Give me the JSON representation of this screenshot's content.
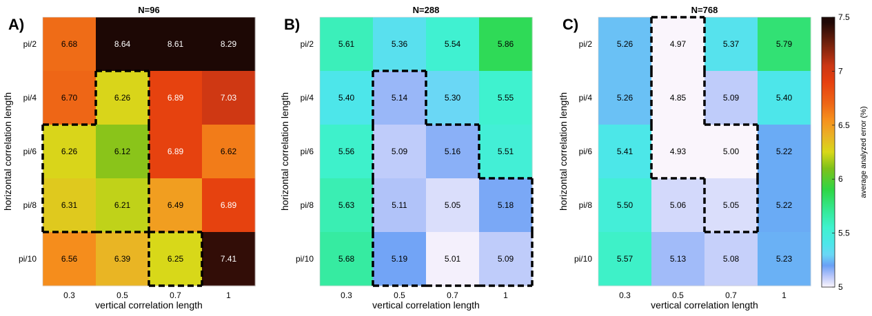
{
  "colorbar": {
    "label": "average analyzed error (%)",
    "min": 5,
    "max": 7.5,
    "ticks": [
      "5",
      "5.5",
      "6",
      "6.5",
      "7",
      "7.5"
    ],
    "colormap": "lavender-blue-cyan-green-yellow-orange-red-dark",
    "stops": [
      {
        "v": 5.0,
        "c": "#faf5fc"
      },
      {
        "v": 5.1,
        "c": "#b9c7fa"
      },
      {
        "v": 5.2,
        "c": "#6aa0f5"
      },
      {
        "v": 5.3,
        "c": "#6ad7f5"
      },
      {
        "v": 5.4,
        "c": "#4de6ea"
      },
      {
        "v": 5.55,
        "c": "#3ff2cf"
      },
      {
        "v": 5.7,
        "c": "#35ea9a"
      },
      {
        "v": 5.9,
        "c": "#2ed646"
      },
      {
        "v": 6.1,
        "c": "#7ec11a"
      },
      {
        "v": 6.25,
        "c": "#d8d819"
      },
      {
        "v": 6.4,
        "c": "#eab225"
      },
      {
        "v": 6.55,
        "c": "#f6901c"
      },
      {
        "v": 6.7,
        "c": "#ee6616"
      },
      {
        "v": 6.9,
        "c": "#e6400f"
      },
      {
        "v": 7.05,
        "c": "#cc3714"
      },
      {
        "v": 7.25,
        "c": "#75220c"
      },
      {
        "v": 7.45,
        "c": "#210806"
      },
      {
        "v": 7.5,
        "c": "#1d0805"
      }
    ]
  },
  "chart_data": [
    {
      "type": "heatmap",
      "letter": "A)",
      "title": "N=96",
      "xlabel": "vertical correlation length",
      "ylabel": "horizontal correlation length",
      "x_categories": [
        "0.3",
        "0.5",
        "0.7",
        "1"
      ],
      "y_categories": [
        "pi/2",
        "pi/4",
        "pi/6",
        "pi/8",
        "pi/10"
      ],
      "values": [
        [
          6.68,
          8.64,
          8.61,
          8.29
        ],
        [
          6.7,
          6.26,
          6.89,
          7.03
        ],
        [
          6.26,
          6.12,
          6.89,
          6.62
        ],
        [
          6.31,
          6.21,
          6.49,
          6.89
        ],
        [
          6.56,
          6.39,
          6.25,
          7.41
        ]
      ],
      "labels": [
        [
          "6.68",
          "8.64",
          "8.61",
          "8.29"
        ],
        [
          "6.70",
          "6.26",
          "6.89",
          "7.03"
        ],
        [
          "6.26",
          "6.12",
          "6.89",
          "6.62"
        ],
        [
          "6.31",
          "6.21",
          "6.49",
          "6.89"
        ],
        [
          "6.56",
          "6.39",
          "6.25",
          "7.41"
        ]
      ],
      "label_colors": [
        [
          "#000000",
          "#ffffff",
          "#ffffff",
          "#ffffff"
        ],
        [
          "#000000",
          "#000000",
          "#ffffff",
          "#ffffff"
        ],
        [
          "#000000",
          "#000000",
          "#ffffff",
          "#000000"
        ],
        [
          "#000000",
          "#000000",
          "#000000",
          "#ffffff"
        ],
        [
          "#000000",
          "#000000",
          "#000000",
          "#ffffff"
        ]
      ],
      "highlight_region": [
        [
          1,
          1
        ],
        [
          2,
          0
        ],
        [
          2,
          1
        ],
        [
          3,
          0
        ],
        [
          3,
          1
        ],
        [
          4,
          2
        ]
      ]
    },
    {
      "type": "heatmap",
      "letter": "B)",
      "title": "N=288",
      "xlabel": "vertical correlation length",
      "ylabel": "horizontal correlation length",
      "x_categories": [
        "0.3",
        "0.5",
        "0.7",
        "1"
      ],
      "y_categories": [
        "pi/2",
        "pi/4",
        "pi/6",
        "pi/8",
        "pi/10"
      ],
      "values": [
        [
          5.61,
          5.36,
          5.54,
          5.86
        ],
        [
          5.4,
          5.14,
          5.3,
          5.55
        ],
        [
          5.56,
          5.09,
          5.16,
          5.51
        ],
        [
          5.63,
          5.11,
          5.05,
          5.18
        ],
        [
          5.68,
          5.19,
          5.01,
          5.09
        ]
      ],
      "labels": [
        [
          "5.61",
          "5.36",
          "5.54",
          "5.86"
        ],
        [
          "5.40",
          "5.14",
          "5.30",
          "5.55"
        ],
        [
          "5.56",
          "5.09",
          "5.16",
          "5.51"
        ],
        [
          "5.63",
          "5.11",
          "5.05",
          "5.18"
        ],
        [
          "5.68",
          "5.19",
          "5.01",
          "5.09"
        ]
      ],
      "label_colors": [
        [
          "#000000",
          "#000000",
          "#000000",
          "#000000"
        ],
        [
          "#000000",
          "#000000",
          "#000000",
          "#000000"
        ],
        [
          "#000000",
          "#000000",
          "#000000",
          "#000000"
        ],
        [
          "#000000",
          "#000000",
          "#000000",
          "#000000"
        ],
        [
          "#000000",
          "#000000",
          "#000000",
          "#000000"
        ]
      ],
      "highlight_region": [
        [
          1,
          1
        ],
        [
          2,
          1
        ],
        [
          2,
          2
        ],
        [
          3,
          1
        ],
        [
          3,
          2
        ],
        [
          3,
          3
        ],
        [
          4,
          1
        ],
        [
          4,
          2
        ],
        [
          4,
          3
        ]
      ]
    },
    {
      "type": "heatmap",
      "letter": "C)",
      "title": "N=768",
      "xlabel": "vertical correlation length",
      "ylabel": "horizontal correlation length",
      "x_categories": [
        "0.3",
        "0.5",
        "0.7",
        "1"
      ],
      "y_categories": [
        "pi/2",
        "pi/4",
        "pi/6",
        "pi/8",
        "pi/10"
      ],
      "values": [
        [
          5.26,
          4.97,
          5.37,
          5.79
        ],
        [
          5.26,
          4.85,
          5.09,
          5.4
        ],
        [
          5.41,
          4.93,
          5.0,
          5.22
        ],
        [
          5.5,
          5.06,
          5.05,
          5.22
        ],
        [
          5.57,
          5.13,
          5.08,
          5.23
        ]
      ],
      "labels": [
        [
          "5.26",
          "4.97",
          "5.37",
          "5.79"
        ],
        [
          "5.26",
          "4.85",
          "5.09",
          "5.40"
        ],
        [
          "5.41",
          "4.93",
          "5.00",
          "5.22"
        ],
        [
          "5.50",
          "5.06",
          "5.05",
          "5.22"
        ],
        [
          "5.57",
          "5.13",
          "5.08",
          "5.23"
        ]
      ],
      "label_colors": [
        [
          "#000000",
          "#000000",
          "#000000",
          "#000000"
        ],
        [
          "#000000",
          "#000000",
          "#000000",
          "#000000"
        ],
        [
          "#000000",
          "#000000",
          "#000000",
          "#000000"
        ],
        [
          "#000000",
          "#000000",
          "#000000",
          "#000000"
        ],
        [
          "#000000",
          "#000000",
          "#000000",
          "#000000"
        ]
      ],
      "highlight_region": [
        [
          0,
          1
        ],
        [
          1,
          1
        ],
        [
          2,
          1
        ],
        [
          2,
          2
        ],
        [
          3,
          2
        ]
      ]
    }
  ]
}
